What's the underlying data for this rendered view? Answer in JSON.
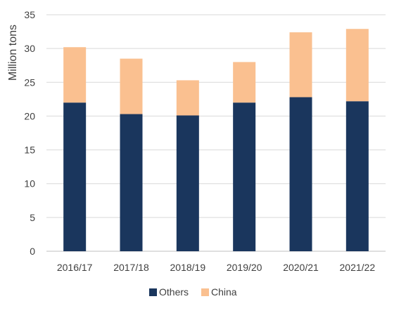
{
  "chart_data": {
    "type": "bar",
    "stacked": true,
    "title": "",
    "xlabel": "",
    "ylabel": "Million tons",
    "ylim": [
      0,
      35
    ],
    "yticks": [
      0,
      5,
      10,
      15,
      20,
      25,
      30,
      35
    ],
    "grid": true,
    "legend_position": "bottom",
    "categories": [
      "2016/17",
      "2017/18",
      "2018/19",
      "2019/20",
      "2020/21",
      "2021/22"
    ],
    "series": [
      {
        "name": "Others",
        "color": "#1a365d",
        "values": [
          22.0,
          20.3,
          20.1,
          22.0,
          22.8,
          22.2
        ]
      },
      {
        "name": "China",
        "color": "#fac090",
        "values": [
          8.2,
          8.2,
          5.2,
          6.0,
          9.6,
          10.7
        ]
      }
    ]
  }
}
